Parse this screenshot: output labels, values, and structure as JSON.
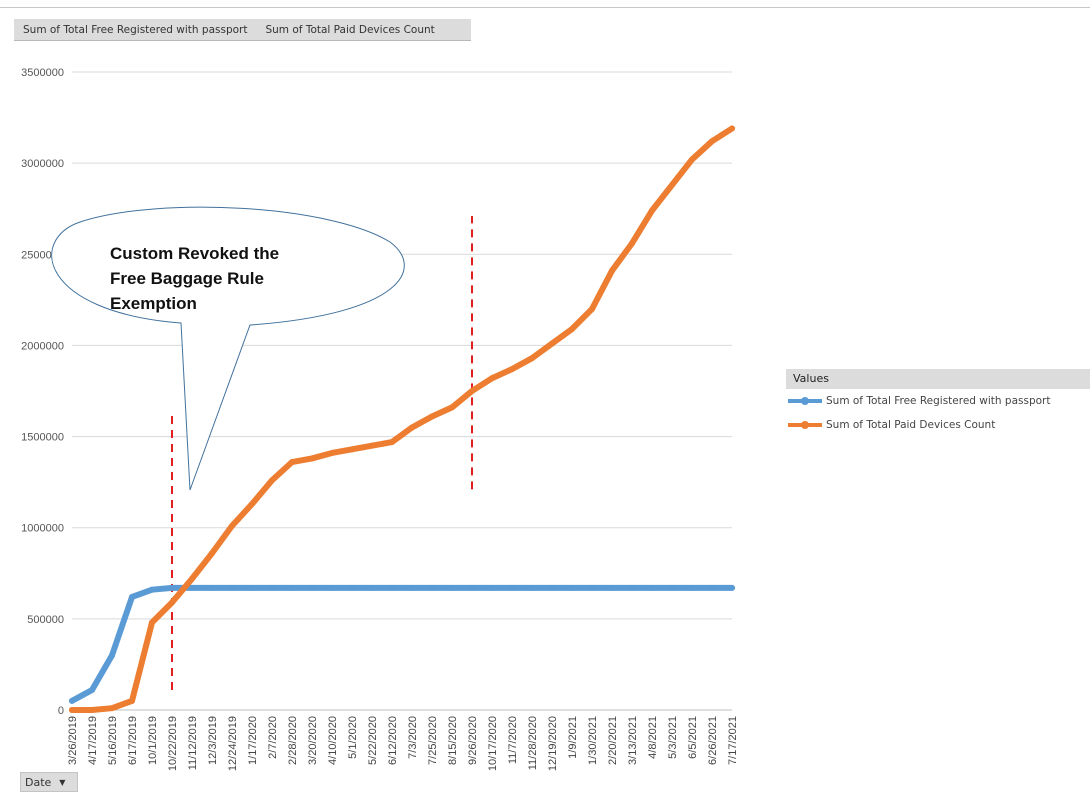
{
  "field_buttons": [
    "Sum of Total Free Registered with passport",
    "Sum of Total Paid Devices Count"
  ],
  "axis_field": {
    "label": "Date"
  },
  "legend": {
    "title": "Values"
  },
  "annotation": {
    "lines": [
      "Custom Revoked the",
      "Free Baggage Rule",
      "Exemption"
    ]
  },
  "colors": {
    "free": "#5b9bd5",
    "paid": "#ed7d31",
    "marker": "#e02020",
    "grid": "#d9d9d9"
  },
  "chart_data": {
    "type": "line",
    "ylim": [
      0,
      3500000
    ],
    "yticks": [
      0,
      500000,
      1000000,
      1500000,
      2000000,
      2500000,
      3000000,
      3500000
    ],
    "x_tick_labels": [
      "3/26/2019",
      "4/17/2019",
      "5/16/2019",
      "6/17/2019",
      "10/1/2019",
      "10/22/2019",
      "11/12/2019",
      "12/3/2019",
      "12/24/2019",
      "1/17/2020",
      "2/7/2020",
      "2/28/2020",
      "3/20/2020",
      "4/10/2020",
      "5/1/2020",
      "5/22/2020",
      "6/12/2020",
      "7/3/2020",
      "7/25/2020",
      "8/15/2020",
      "9/26/2020",
      "10/17/2020",
      "11/7/2020",
      "11/28/2020",
      "12/19/2020",
      "1/9/2021",
      "1/30/2021",
      "2/20/2021",
      "3/13/2021",
      "4/8/2021",
      "5/3/2021",
      "6/5/2021",
      "6/26/2021",
      "7/17/2021"
    ],
    "series": [
      {
        "name": "Sum of Total Free Registered with passport",
        "color": "#5b9bd5",
        "values": [
          50000,
          110000,
          300000,
          620000,
          660000,
          670000,
          670000,
          670000,
          670000,
          670000,
          670000,
          670000,
          670000,
          670000,
          670000,
          670000,
          670000,
          670000,
          670000,
          670000,
          670000,
          670000,
          670000,
          670000,
          670000,
          670000,
          670000,
          670000,
          670000,
          670000,
          670000,
          670000,
          670000,
          670000
        ]
      },
      {
        "name": "Sum of Total Paid Devices Count",
        "color": "#ed7d31",
        "values": [
          0,
          0,
          10000,
          50000,
          480000,
          590000,
          720000,
          860000,
          1010000,
          1130000,
          1260000,
          1360000,
          1380000,
          1410000,
          1430000,
          1450000,
          1470000,
          1550000,
          1610000,
          1660000,
          1750000,
          1820000,
          1870000,
          1930000,
          2010000,
          2090000,
          2200000,
          2410000,
          2560000,
          2740000,
          2880000,
          3020000,
          3120000,
          3190000
        ]
      }
    ],
    "markers": [
      {
        "x_label": "10/22/2019",
        "y_range": [
          110000,
          1620000
        ]
      },
      {
        "x_label": "9/26/2020",
        "y_range": [
          1210000,
          2710000
        ]
      }
    ]
  }
}
